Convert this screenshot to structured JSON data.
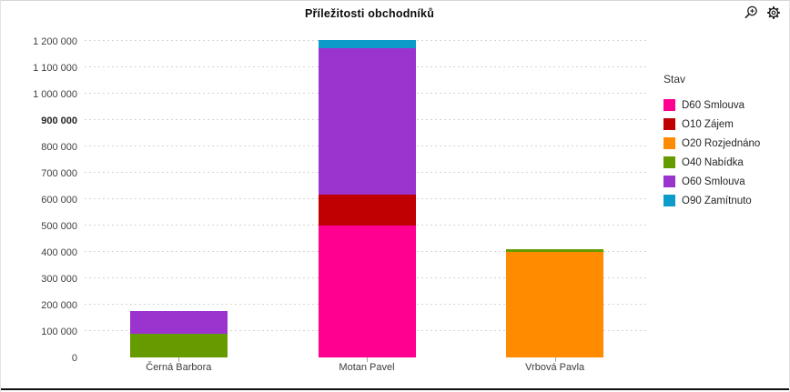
{
  "header": {
    "title": "Příležitosti obchodníků",
    "icons": {
      "zoom_in": "magnifier-plus-icon",
      "settings": "gear-icon"
    }
  },
  "legend": {
    "title": "Stav"
  },
  "chart_data": {
    "type": "bar",
    "stacked": true,
    "title": "Příležitosti obchodníků",
    "categories": [
      "Černá Barbora",
      "Motan Pavel",
      "Vrbová Pavla"
    ],
    "series": [
      {
        "name": "D60 Smlouva",
        "color": "#FF0090",
        "values": [
          0,
          499000,
          0
        ]
      },
      {
        "name": "O10 Zájem",
        "color": "#C00000",
        "values": [
          0,
          117000,
          0
        ]
      },
      {
        "name": "O20 Rozjednáno",
        "color": "#FF8C00",
        "values": [
          0,
          0,
          401000
        ]
      },
      {
        "name": "O40 Nabídka",
        "color": "#669B00",
        "values": [
          89000,
          0,
          9000
        ]
      },
      {
        "name": "O60 Smlouva",
        "color": "#9B33CF",
        "values": [
          86000,
          557000,
          0
        ]
      },
      {
        "name": "O90 Zamítnuto",
        "color": "#0D9CC9",
        "values": [
          0,
          31000,
          0
        ]
      }
    ],
    "totals": [
      175000,
      1204000,
      410000
    ],
    "legend_title": "Stav",
    "legend_position": "right",
    "xlabel": "",
    "ylabel": "",
    "ylim": [
      0,
      1200000
    ],
    "grid": "dashed-horizontal",
    "y_ticks": [
      {
        "value": 0,
        "label": "0",
        "bold": false
      },
      {
        "value": 100000,
        "label": "100 000",
        "bold": false
      },
      {
        "value": 200000,
        "label": "200 000",
        "bold": false
      },
      {
        "value": 300000,
        "label": "300 000",
        "bold": false
      },
      {
        "value": 400000,
        "label": "400 000",
        "bold": false
      },
      {
        "value": 500000,
        "label": "500 000",
        "bold": false
      },
      {
        "value": 600000,
        "label": "600 000",
        "bold": false
      },
      {
        "value": 700000,
        "label": "700 000",
        "bold": false
      },
      {
        "value": 800000,
        "label": "800 000",
        "bold": false
      },
      {
        "value": 900000,
        "label": "900 000",
        "bold": true
      },
      {
        "value": 1000000,
        "label": "1 000 000",
        "bold": false
      },
      {
        "value": 1100000,
        "label": "1 100 000",
        "bold": false
      },
      {
        "value": 1200000,
        "label": "1 200 000",
        "bold": false
      }
    ]
  }
}
